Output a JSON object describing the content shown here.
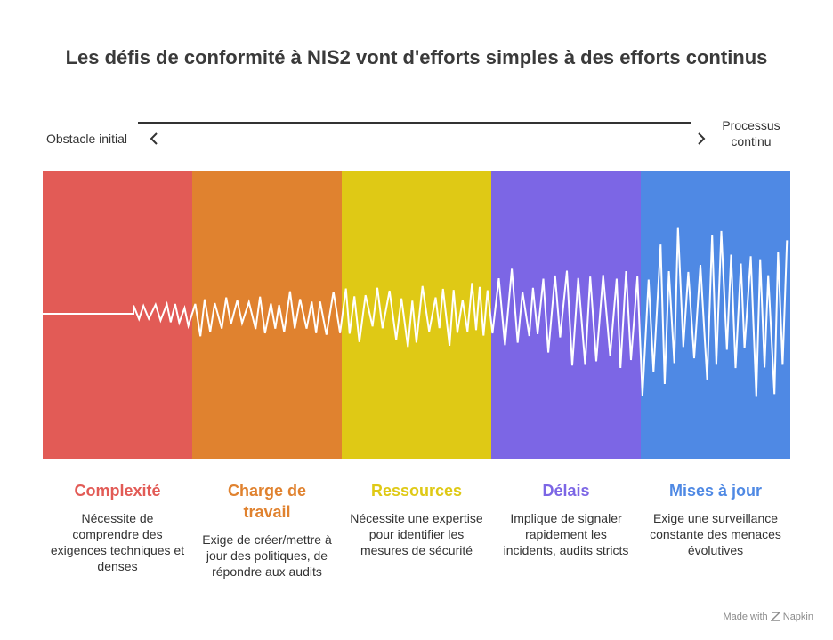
{
  "title": "Les défis de conformité à NIS2 vont d'efforts simples à des efforts continus",
  "axis": {
    "left_label": "Obstacle initial",
    "right_label": "Processus continu"
  },
  "stages": [
    {
      "title": "Complexité",
      "description": "Nécessite de comprendre des exigences techniques et denses",
      "color": "#e25b56"
    },
    {
      "title": "Charge de travail",
      "description": "Exige de créer/mettre à jour des politiques, de répondre aux audits",
      "color": "#e0822f"
    },
    {
      "title": "Ressources",
      "description": "Nécessite une expertise pour identifier les mesures de sécurité",
      "color": "#dfc915"
    },
    {
      "title": "Délais",
      "description": "Implique de signaler rapidement les incidents, audits stricts",
      "color": "#7c66e5"
    },
    {
      "title": "Mises à jour",
      "description": "Exige une surveillance constante des menaces évolutives",
      "color": "#4f89e4"
    }
  ],
  "footer": {
    "made_with": "Made with",
    "brand": "Napkin",
    "icon": "napkin-logo-icon"
  },
  "icons": {
    "left": "chevron-left-icon",
    "right": "chevron-right-icon"
  }
}
